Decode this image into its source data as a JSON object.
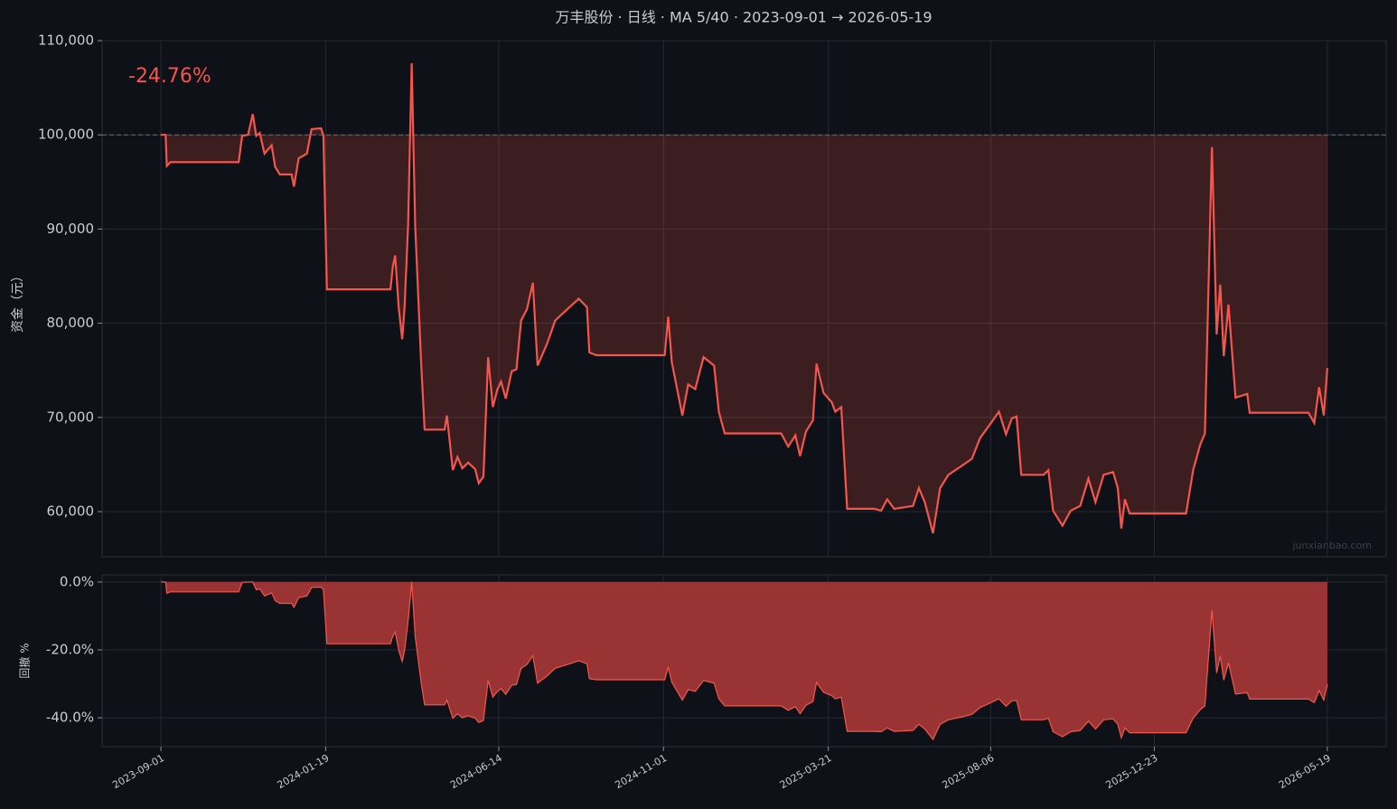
{
  "chart_data": [
    {
      "type": "line",
      "title": "万丰股份 · 日线 · MA 5/40 · 2023-09-01 → 2026-05-19",
      "y_label": "资金（元）",
      "annotation": "-24.76%",
      "watermark": "junxianbao.com",
      "color": "#f4564c",
      "baseline": 100000,
      "xlim": [
        "2023-07-13",
        "2026-07-08"
      ],
      "ylim": [
        55200,
        110000
      ],
      "yticks": [
        {
          "value": 60000,
          "label": "60,000"
        },
        {
          "value": 70000,
          "label": "70,000"
        },
        {
          "value": 80000,
          "label": "80,000"
        },
        {
          "value": 90000,
          "label": "90,000"
        },
        {
          "value": 100000,
          "label": "100,000"
        },
        {
          "value": 110000,
          "label": "110,000"
        }
      ],
      "grid": true,
      "x": [
        "2023-09-01",
        "2023-09-05",
        "2023-09-06",
        "2023-09-09",
        "2023-11-06",
        "2023-11-09",
        "2023-11-14",
        "2023-11-18",
        "2023-11-21",
        "2023-11-24",
        "2023-11-28",
        "2023-12-04",
        "2023-12-07",
        "2023-12-11",
        "2023-12-21",
        "2023-12-23",
        "2023-12-27",
        "2024-01-03",
        "2024-01-07",
        "2024-01-15",
        "2024-01-17",
        "2024-01-20",
        "2024-03-14",
        "2024-03-16",
        "2024-03-18",
        "2024-03-21",
        "2024-03-24",
        "2024-03-26",
        "2024-03-29",
        "2024-04-01",
        "2024-04-04",
        "2024-04-09",
        "2024-04-12",
        "2024-04-29",
        "2024-05-01",
        "2024-05-06",
        "2024-05-10",
        "2024-05-14",
        "2024-05-19",
        "2024-05-25",
        "2024-05-28",
        "2024-06-01",
        "2024-06-05",
        "2024-06-09",
        "2024-06-13",
        "2024-06-16",
        "2024-06-20",
        "2024-06-25",
        "2024-06-29",
        "2024-07-03",
        "2024-07-08",
        "2024-07-13",
        "2024-07-17",
        "2024-07-25",
        "2024-08-01",
        "2024-08-13",
        "2024-08-21",
        "2024-08-28",
        "2024-08-30",
        "2024-09-05",
        "2024-11-02",
        "2024-11-05",
        "2024-11-08",
        "2024-11-17",
        "2024-11-22",
        "2024-11-28",
        "2024-12-05",
        "2024-12-14",
        "2024-12-18",
        "2024-12-23",
        "2025-02-09",
        "2025-02-15",
        "2025-02-21",
        "2025-02-25",
        "2025-03-02",
        "2025-03-08",
        "2025-03-11",
        "2025-03-17",
        "2025-03-24",
        "2025-03-27",
        "2025-04-01",
        "2025-04-06",
        "2025-04-29",
        "2025-05-05",
        "2025-05-10",
        "2025-05-16",
        "2025-06-01",
        "2025-06-06",
        "2025-06-11",
        "2025-06-18",
        "2025-06-24",
        "2025-07-01",
        "2025-07-13",
        "2025-07-21",
        "2025-07-28",
        "2025-08-05",
        "2025-08-13",
        "2025-08-19",
        "2025-08-24",
        "2025-08-28",
        "2025-09-01",
        "2025-09-20",
        "2025-09-24",
        "2025-09-28",
        "2025-10-06",
        "2025-10-13",
        "2025-10-21",
        "2025-10-28",
        "2025-11-03",
        "2025-11-10",
        "2025-11-18",
        "2025-11-22",
        "2025-11-25",
        "2025-11-28",
        "2025-12-02",
        "2026-01-19",
        "2026-01-25",
        "2026-01-31",
        "2026-02-04",
        "2026-02-10",
        "2026-02-14",
        "2026-02-17",
        "2026-02-20",
        "2026-02-24",
        "2026-03-02",
        "2026-03-12",
        "2026-03-14",
        "2026-05-03",
        "2026-05-08",
        "2026-05-12",
        "2026-05-16",
        "2026-05-19"
      ],
      "values": [
        100000,
        100000,
        96700,
        97100,
        97100,
        99900,
        100000,
        102200,
        99900,
        100200,
        98000,
        98900,
        96600,
        95800,
        95800,
        94500,
        97500,
        98000,
        100600,
        100700,
        99900,
        83600,
        83600,
        86000,
        87200,
        81700,
        78300,
        81700,
        90300,
        107600,
        90300,
        75900,
        68700,
        68700,
        70200,
        64400,
        65800,
        64600,
        65200,
        64500,
        63000,
        63700,
        76400,
        71100,
        73000,
        73800,
        72000,
        74900,
        75100,
        80300,
        81500,
        84300,
        75500,
        77800,
        80300,
        81700,
        82600,
        81700,
        76900,
        76600,
        76600,
        80700,
        75900,
        70200,
        73500,
        73000,
        76400,
        75500,
        70600,
        68300,
        68300,
        66900,
        68100,
        65900,
        68500,
        69700,
        75700,
        72600,
        71600,
        70600,
        71100,
        60300,
        60300,
        60100,
        61300,
        60300,
        60600,
        62500,
        61000,
        57700,
        62500,
        63900,
        64900,
        65600,
        67800,
        69200,
        70600,
        68200,
        69900,
        70100,
        63900,
        63900,
        64400,
        60100,
        58500,
        60100,
        60600,
        63500,
        61000,
        63900,
        64200,
        62500,
        58200,
        61300,
        59800,
        59800,
        64400,
        67100,
        68300,
        98700,
        78800,
        84100,
        76500,
        82000,
        72100,
        72500,
        70500,
        70500,
        69400,
        73200,
        70200,
        75240
      ]
    },
    {
      "type": "area",
      "y_label": "回撤 %",
      "color": "#f4564c",
      "fill": "#9a3434",
      "xlim": [
        "2023-07-13",
        "2026-07-08"
      ],
      "ylim": [
        -48.5,
        2.1
      ],
      "yticks": [
        {
          "value": -40,
          "label": "-40.0%"
        },
        {
          "value": -20,
          "label": "-20.0%"
        },
        {
          "value": 0,
          "label": "0.0%"
        }
      ],
      "xticks": [
        "2023-09-01",
        "2024-01-19",
        "2024-06-14",
        "2024-11-01",
        "2025-03-21",
        "2025-08-06",
        "2025-12-23",
        "2026-05-19"
      ],
      "grid": true,
      "x": [
        "2023-09-01",
        "2023-09-05",
        "2023-09-06",
        "2023-09-09",
        "2023-11-06",
        "2023-11-09",
        "2023-11-14",
        "2023-11-18",
        "2023-11-21",
        "2023-11-24",
        "2023-11-28",
        "2023-12-04",
        "2023-12-07",
        "2023-12-11",
        "2023-12-21",
        "2023-12-23",
        "2023-12-27",
        "2024-01-03",
        "2024-01-07",
        "2024-01-15",
        "2024-01-17",
        "2024-01-20",
        "2024-03-14",
        "2024-03-16",
        "2024-03-18",
        "2024-03-21",
        "2024-03-24",
        "2024-03-26",
        "2024-03-29",
        "2024-04-01",
        "2024-04-04",
        "2024-04-09",
        "2024-04-12",
        "2024-04-29",
        "2024-05-01",
        "2024-05-06",
        "2024-05-10",
        "2024-05-14",
        "2024-05-19",
        "2024-05-25",
        "2024-05-28",
        "2024-06-01",
        "2024-06-05",
        "2024-06-09",
        "2024-06-13",
        "2024-06-16",
        "2024-06-20",
        "2024-06-25",
        "2024-06-29",
        "2024-07-03",
        "2024-07-08",
        "2024-07-13",
        "2024-07-17",
        "2024-07-25",
        "2024-08-01",
        "2024-08-13",
        "2024-08-21",
        "2024-08-28",
        "2024-08-30",
        "2024-09-05",
        "2024-11-02",
        "2024-11-05",
        "2024-11-08",
        "2024-11-17",
        "2024-11-22",
        "2024-11-28",
        "2024-12-05",
        "2024-12-14",
        "2024-12-18",
        "2024-12-23",
        "2025-02-09",
        "2025-02-15",
        "2025-02-21",
        "2025-02-25",
        "2025-03-02",
        "2025-03-08",
        "2025-03-11",
        "2025-03-17",
        "2025-03-24",
        "2025-03-27",
        "2025-04-01",
        "2025-04-06",
        "2025-04-29",
        "2025-05-05",
        "2025-05-10",
        "2025-05-16",
        "2025-06-01",
        "2025-06-06",
        "2025-06-11",
        "2025-06-18",
        "2025-06-24",
        "2025-07-01",
        "2025-07-13",
        "2025-07-21",
        "2025-07-28",
        "2025-08-05",
        "2025-08-13",
        "2025-08-19",
        "2025-08-24",
        "2025-08-28",
        "2025-09-01",
        "2025-09-20",
        "2025-09-24",
        "2025-09-28",
        "2025-10-06",
        "2025-10-13",
        "2025-10-21",
        "2025-10-28",
        "2025-11-03",
        "2025-11-10",
        "2025-11-18",
        "2025-11-22",
        "2025-11-25",
        "2025-11-28",
        "2025-12-02",
        "2026-01-19",
        "2026-01-25",
        "2026-01-31",
        "2026-02-04",
        "2026-02-10",
        "2026-02-14",
        "2026-02-17",
        "2026-02-20",
        "2026-02-24",
        "2026-03-02",
        "2026-03-12",
        "2026-03-14",
        "2026-05-03",
        "2026-05-08",
        "2026-05-12",
        "2026-05-16",
        "2026-05-19"
      ],
      "values": [
        0,
        0,
        -3.3,
        -2.9,
        -2.9,
        -0.1,
        0,
        0,
        -2.3,
        -2.0,
        -4.1,
        -3.2,
        -5.5,
        -6.3,
        -6.3,
        -7.5,
        -4.6,
        -4.1,
        -1.6,
        -1.5,
        -2.3,
        -18.2,
        -18.2,
        -15.9,
        -14.7,
        -20.1,
        -23.4,
        -20.1,
        -11.6,
        0,
        -16.1,
        -29.5,
        -36.2,
        -36.2,
        -34.8,
        -40.1,
        -38.8,
        -40.0,
        -39.4,
        -40.1,
        -41.4,
        -40.8,
        -29.0,
        -33.9,
        -32.2,
        -31.4,
        -33.1,
        -30.4,
        -30.2,
        -25.4,
        -24.3,
        -21.7,
        -29.8,
        -27.7,
        -25.4,
        -24.1,
        -23.2,
        -24.1,
        -28.5,
        -28.8,
        -28.8,
        -25.0,
        -29.5,
        -34.8,
        -31.7,
        -32.2,
        -29.0,
        -29.8,
        -34.4,
        -36.5,
        -36.5,
        -37.8,
        -36.7,
        -38.8,
        -36.3,
        -35.2,
        -29.6,
        -32.5,
        -33.5,
        -34.4,
        -33.9,
        -44.0,
        -44.0,
        -44.1,
        -43.0,
        -44.0,
        -43.7,
        -41.9,
        -43.3,
        -46.4,
        -41.9,
        -40.6,
        -39.7,
        -39.0,
        -37.0,
        -35.7,
        -34.4,
        -36.6,
        -35.0,
        -34.9,
        -40.6,
        -40.6,
        -40.1,
        -44.1,
        -45.6,
        -44.1,
        -43.7,
        -41.0,
        -43.3,
        -40.6,
        -40.3,
        -41.9,
        -45.9,
        -43.0,
        -44.4,
        -44.4,
        -40.1,
        -37.6,
        -36.5,
        -8.3,
        -26.8,
        -21.8,
        -28.9,
        -23.8,
        -33.0,
        -32.6,
        -34.5,
        -34.5,
        -35.5,
        -32.0,
        -34.8,
        -30.1
      ]
    }
  ]
}
